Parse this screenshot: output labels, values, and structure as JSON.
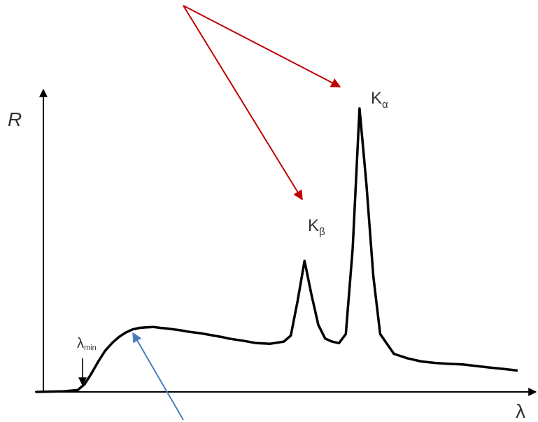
{
  "colors": {
    "curve": "#000000",
    "axis": "#000000",
    "annotation_red": "#c00000",
    "annotation_blue": "#4a7ebb",
    "text": "#333333"
  },
  "chart_data": {
    "type": "line",
    "title": "",
    "ylabel": "R",
    "xlabel": "λ",
    "peaks": [
      {
        "label_main": "K",
        "label_sub": "β"
      },
      {
        "label_main": "K",
        "label_sub": "α"
      }
    ],
    "threshold": {
      "label_main": "λ",
      "label_sub": "min"
    },
    "series": [
      {
        "x": [
          0,
          4,
          6,
          7,
          8,
          9,
          10,
          11,
          12,
          13,
          14,
          15,
          16,
          17,
          18,
          19,
          20,
          21,
          22,
          23,
          24,
          25,
          26,
          27,
          28,
          30,
          32,
          34,
          36,
          37,
          38,
          39,
          40,
          41,
          42,
          43,
          44,
          45,
          46,
          47,
          48,
          49,
          50,
          52,
          54,
          56,
          58,
          60,
          62,
          64,
          66,
          68,
          70
        ],
        "y": [
          0,
          0.2,
          0.6,
          2.5,
          6,
          10,
          13.5,
          16,
          18,
          19.5,
          20.5,
          21,
          21.2,
          21.3,
          21,
          20.8,
          20.5,
          20.2,
          19.8,
          19.5,
          19.2,
          18.8,
          18.4,
          18,
          17.5,
          16.8,
          16,
          15.8,
          16.5,
          18.5,
          30,
          43,
          32,
          22,
          17.5,
          16.5,
          16,
          19,
          47,
          93,
          68,
          38,
          19,
          12.5,
          11,
          10,
          9.5,
          9.2,
          9,
          8.5,
          8,
          7.5,
          7
        ]
      }
    ]
  }
}
